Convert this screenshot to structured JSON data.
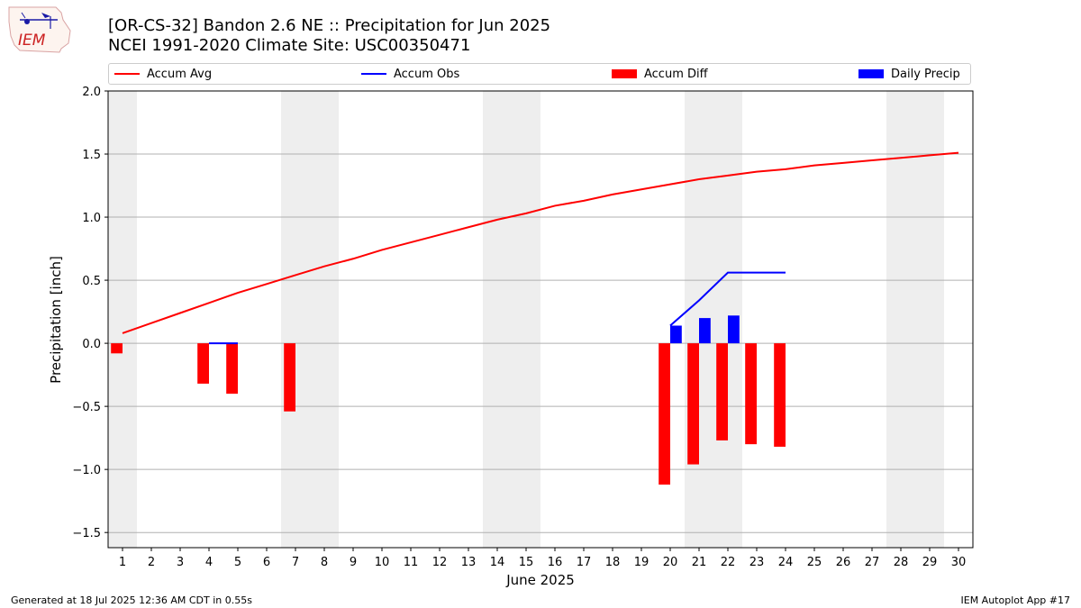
{
  "logo": {
    "text": "IEM"
  },
  "title": {
    "line1": "[OR-CS-32] Bandon 2.6 NE :: Precipitation for Jun 2025",
    "line2": "NCEI 1991-2020 Climate Site: USC00350471"
  },
  "legend": [
    {
      "label": "Accum Avg",
      "kind": "line",
      "color": "#ff0000"
    },
    {
      "label": "Accum Obs",
      "kind": "line",
      "color": "#0000ff"
    },
    {
      "label": "Accum Diff",
      "kind": "bar",
      "color": "#ff0000"
    },
    {
      "label": "Daily Precip",
      "kind": "bar",
      "color": "#0000ff"
    }
  ],
  "footer": {
    "left": "Generated at 18 Jul 2025 12:36 AM CDT in 0.55s",
    "right": "IEM Autoplot App #17"
  },
  "chart_data": {
    "type": "bar",
    "xlabel": "June 2025",
    "ylabel": "Precipitation [inch]",
    "xlim": [
      0.5,
      30.5
    ],
    "ylim": [
      -1.62,
      2.0
    ],
    "yticks": [
      -1.5,
      -1.0,
      -0.5,
      0.0,
      0.5,
      1.0,
      1.5,
      2.0
    ],
    "ytick_labels": [
      "−1.5",
      "−1.0",
      "−0.5",
      "0.0",
      "0.5",
      "1.0",
      "1.5",
      "2.0"
    ],
    "x": [
      1,
      2,
      3,
      4,
      5,
      6,
      7,
      8,
      9,
      10,
      11,
      12,
      13,
      14,
      15,
      16,
      17,
      18,
      19,
      20,
      21,
      22,
      23,
      24,
      25,
      26,
      27,
      28,
      29,
      30
    ],
    "grid": "y",
    "weekend_shading": [
      [
        0.5,
        1.5
      ],
      [
        6.5,
        8.5
      ],
      [
        13.5,
        15.5
      ],
      [
        20.5,
        22.5
      ],
      [
        27.5,
        29.5
      ]
    ],
    "series": [
      {
        "name": "Accum Avg",
        "type": "line",
        "color": "#ff0000",
        "x": [
          1,
          2,
          3,
          4,
          5,
          6,
          7,
          8,
          9,
          10,
          11,
          12,
          13,
          14,
          15,
          16,
          17,
          18,
          19,
          20,
          21,
          22,
          23,
          24,
          25,
          26,
          27,
          28,
          29,
          30
        ],
        "values": [
          0.08,
          0.16,
          0.24,
          0.32,
          0.4,
          0.47,
          0.54,
          0.61,
          0.67,
          0.74,
          0.8,
          0.86,
          0.92,
          0.98,
          1.03,
          1.09,
          1.13,
          1.18,
          1.22,
          1.26,
          1.3,
          1.33,
          1.36,
          1.38,
          1.41,
          1.43,
          1.45,
          1.47,
          1.49,
          1.51
        ]
      },
      {
        "name": "Accum Obs",
        "type": "line",
        "color": "#0000ff",
        "x": [
          4,
          5,
          20,
          21,
          22,
          23,
          24
        ],
        "values": [
          0.0,
          0.0,
          0.14,
          0.34,
          0.56,
          0.56,
          0.56
        ]
      },
      {
        "name": "Accum Diff",
        "type": "bar",
        "color": "#ff0000",
        "x": [
          1,
          4,
          5,
          7,
          20,
          21,
          22,
          23,
          24
        ],
        "values": [
          -0.08,
          -0.32,
          -0.4,
          -0.54,
          -1.12,
          -0.96,
          -0.77,
          -0.8,
          -0.82
        ]
      },
      {
        "name": "Daily Precip",
        "type": "bar",
        "color": "#0000ff",
        "x": [
          20,
          21,
          22
        ],
        "values": [
          0.14,
          0.2,
          0.22
        ]
      }
    ]
  }
}
